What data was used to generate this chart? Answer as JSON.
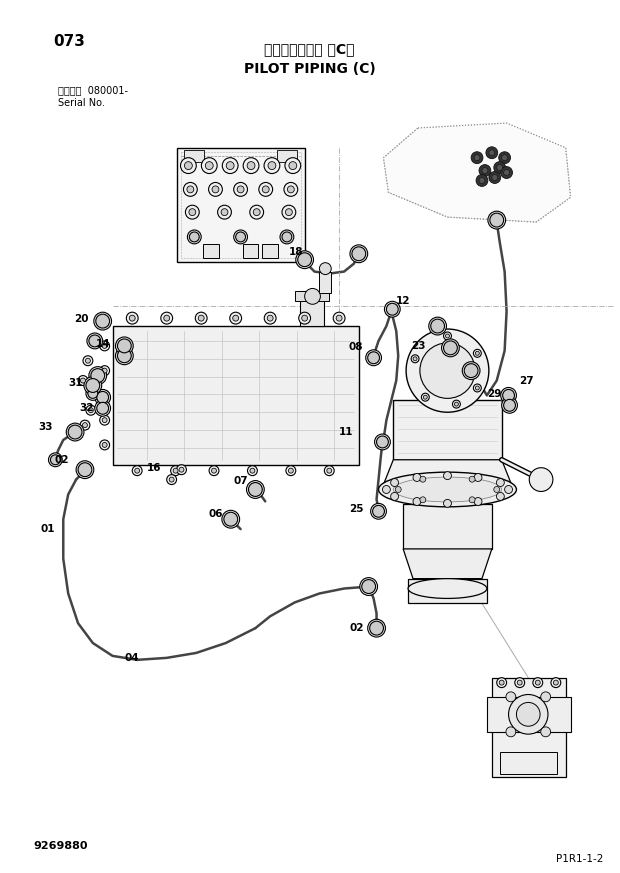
{
  "title_jp": "パイロット配管 （C）",
  "title_en": "PILOT PIPING (C)",
  "page_num": "073",
  "serial_label1": "適用号機  080001-",
  "serial_label2": "Serial No.",
  "part_code": "9269880",
  "diagram_code": "P1R1-1-2",
  "bg_color": "#ffffff",
  "lc": "#000000",
  "glc": "#888888",
  "fig_w": 6.2,
  "fig_h": 8.73,
  "dpi": 100
}
